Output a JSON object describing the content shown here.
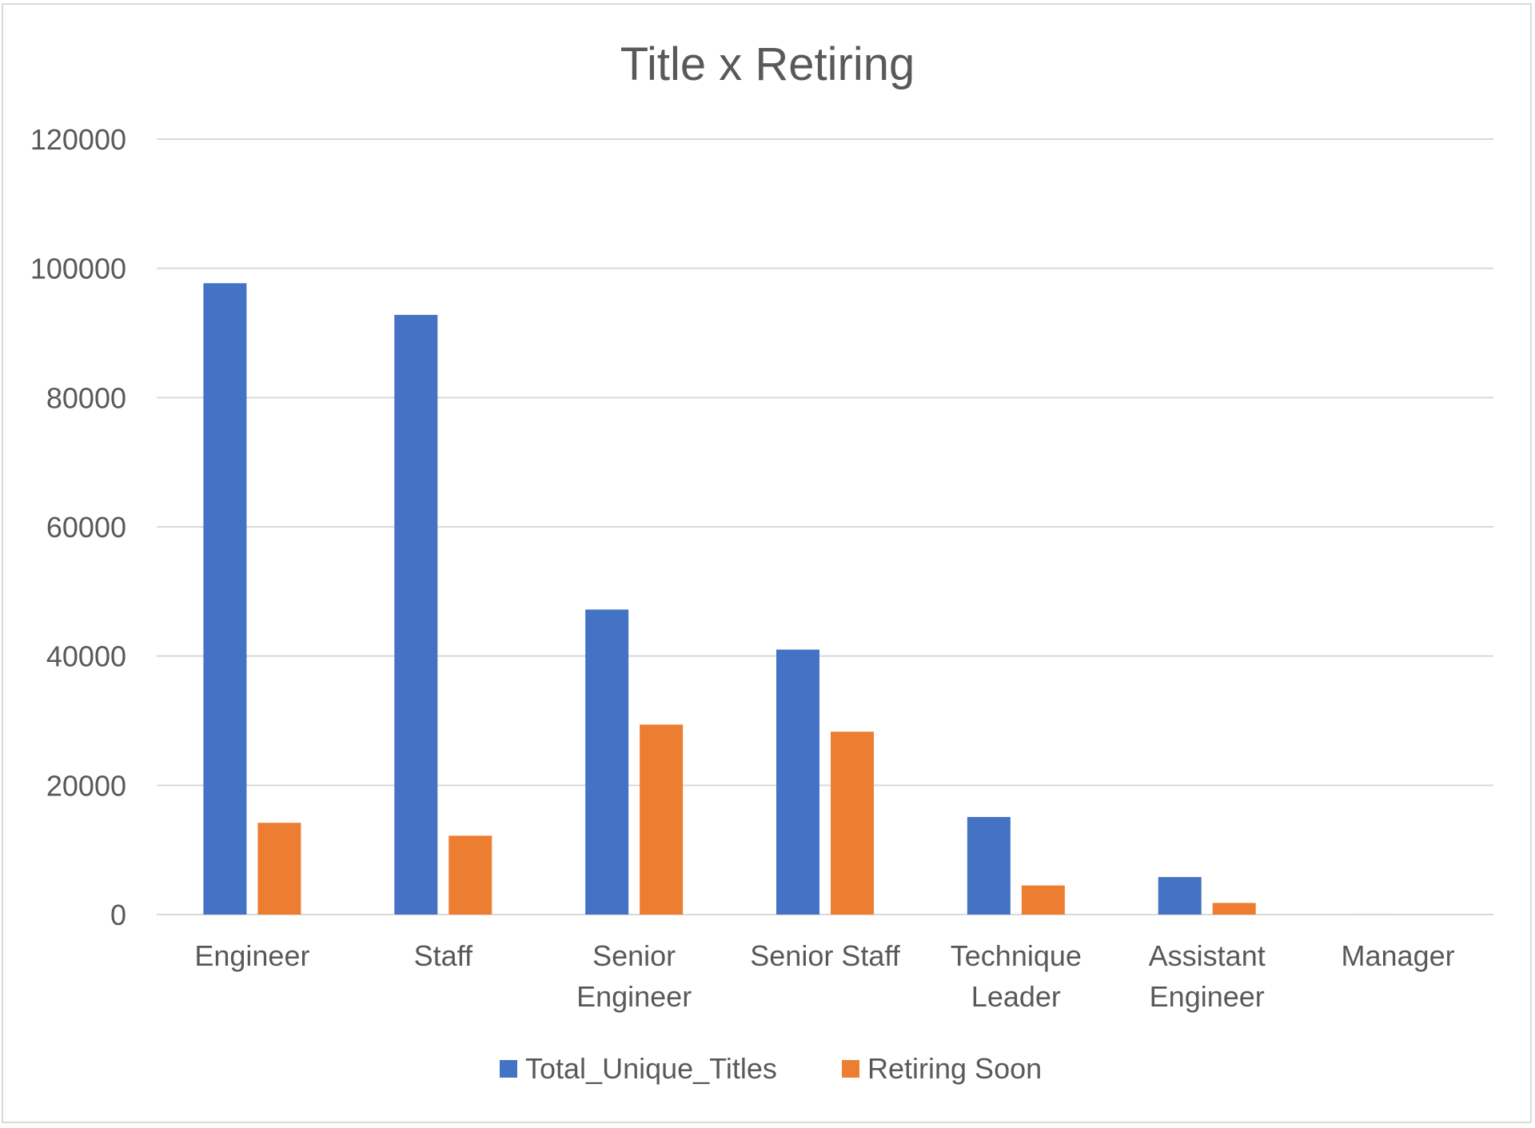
{
  "chart_data": {
    "type": "bar",
    "title": "Title x Retiring",
    "categories": [
      "Engineer",
      "Staff",
      "Senior Engineer",
      "Senior Staff",
      "Technique Leader",
      "Assistant Engineer",
      "Manager"
    ],
    "category_lines": [
      [
        "Engineer"
      ],
      [
        "Staff"
      ],
      [
        "Senior",
        "Engineer"
      ],
      [
        "Senior Staff"
      ],
      [
        "Technique",
        "Leader"
      ],
      [
        "Assistant",
        "Engineer"
      ],
      [
        "Manager"
      ]
    ],
    "series": [
      {
        "name": "Total_Unique_Titles",
        "color": "#4472c4",
        "values": [
          97700,
          92800,
          47200,
          41000,
          15100,
          5800,
          9
        ]
      },
      {
        "name": "Retiring Soon",
        "color": "#ed7d31",
        "values": [
          14200,
          12200,
          29400,
          28300,
          4500,
          1800,
          2
        ]
      }
    ],
    "ylim": [
      0,
      120000
    ],
    "yticks": [
      0,
      20000,
      40000,
      60000,
      80000,
      100000,
      120000
    ],
    "ytick_labels": [
      "0",
      "20000",
      "40000",
      "60000",
      "80000",
      "100000",
      "120000"
    ],
    "grid": true,
    "legend_position": "bottom",
    "xlabel": "",
    "ylabel": ""
  }
}
